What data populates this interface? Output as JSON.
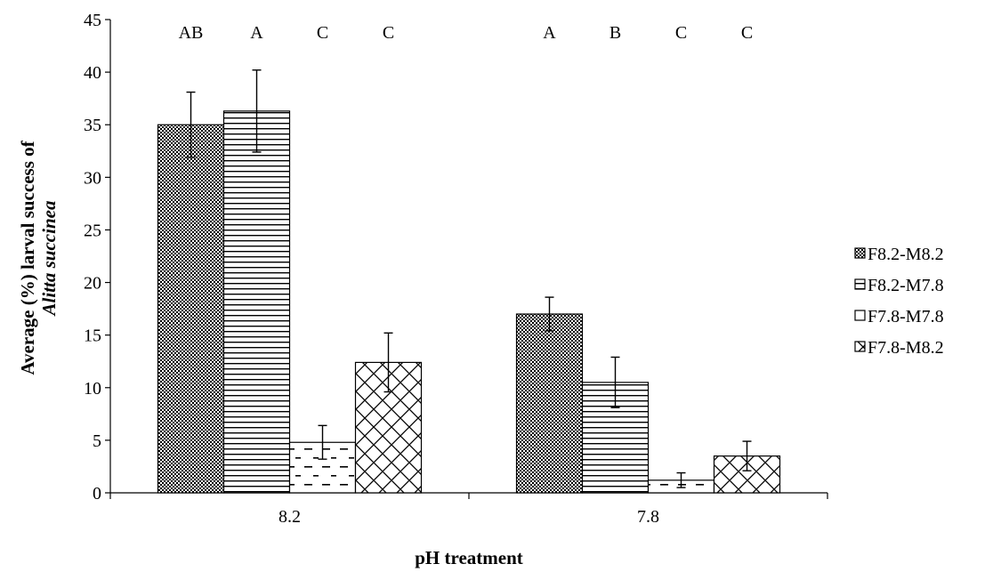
{
  "chart_data": {
    "type": "bar",
    "categories": [
      "8.2",
      "7.8"
    ],
    "series": [
      {
        "name": "F8.2-M8.2",
        "values": [
          35.0,
          17.0
        ],
        "errors": [
          3.1,
          1.6
        ],
        "sig_labels": [
          "AB",
          "A"
        ],
        "pattern": "checker"
      },
      {
        "name": "F8.2-M7.8",
        "values": [
          36.3,
          10.5
        ],
        "errors": [
          3.9,
          2.4
        ],
        "sig_labels": [
          "A",
          "B"
        ],
        "pattern": "hlines"
      },
      {
        "name": "F7.8-M7.8",
        "values": [
          4.8,
          1.2
        ],
        "errors": [
          1.6,
          0.7
        ],
        "sig_labels": [
          "C",
          "C"
        ],
        "pattern": "dashes"
      },
      {
        "name": "F7.8-M8.2",
        "values": [
          12.4,
          3.5
        ],
        "errors": [
          2.8,
          1.4
        ],
        "sig_labels": [
          "C",
          "C"
        ],
        "pattern": "diamond"
      }
    ],
    "xlabel": "pH treatment",
    "ylabel_line1": "Average (%) larval success of",
    "ylabel_line2": "Alitta succinea",
    "ylim": [
      0,
      45
    ],
    "ytick_step": 5,
    "grid": false,
    "legend_position": "right"
  }
}
